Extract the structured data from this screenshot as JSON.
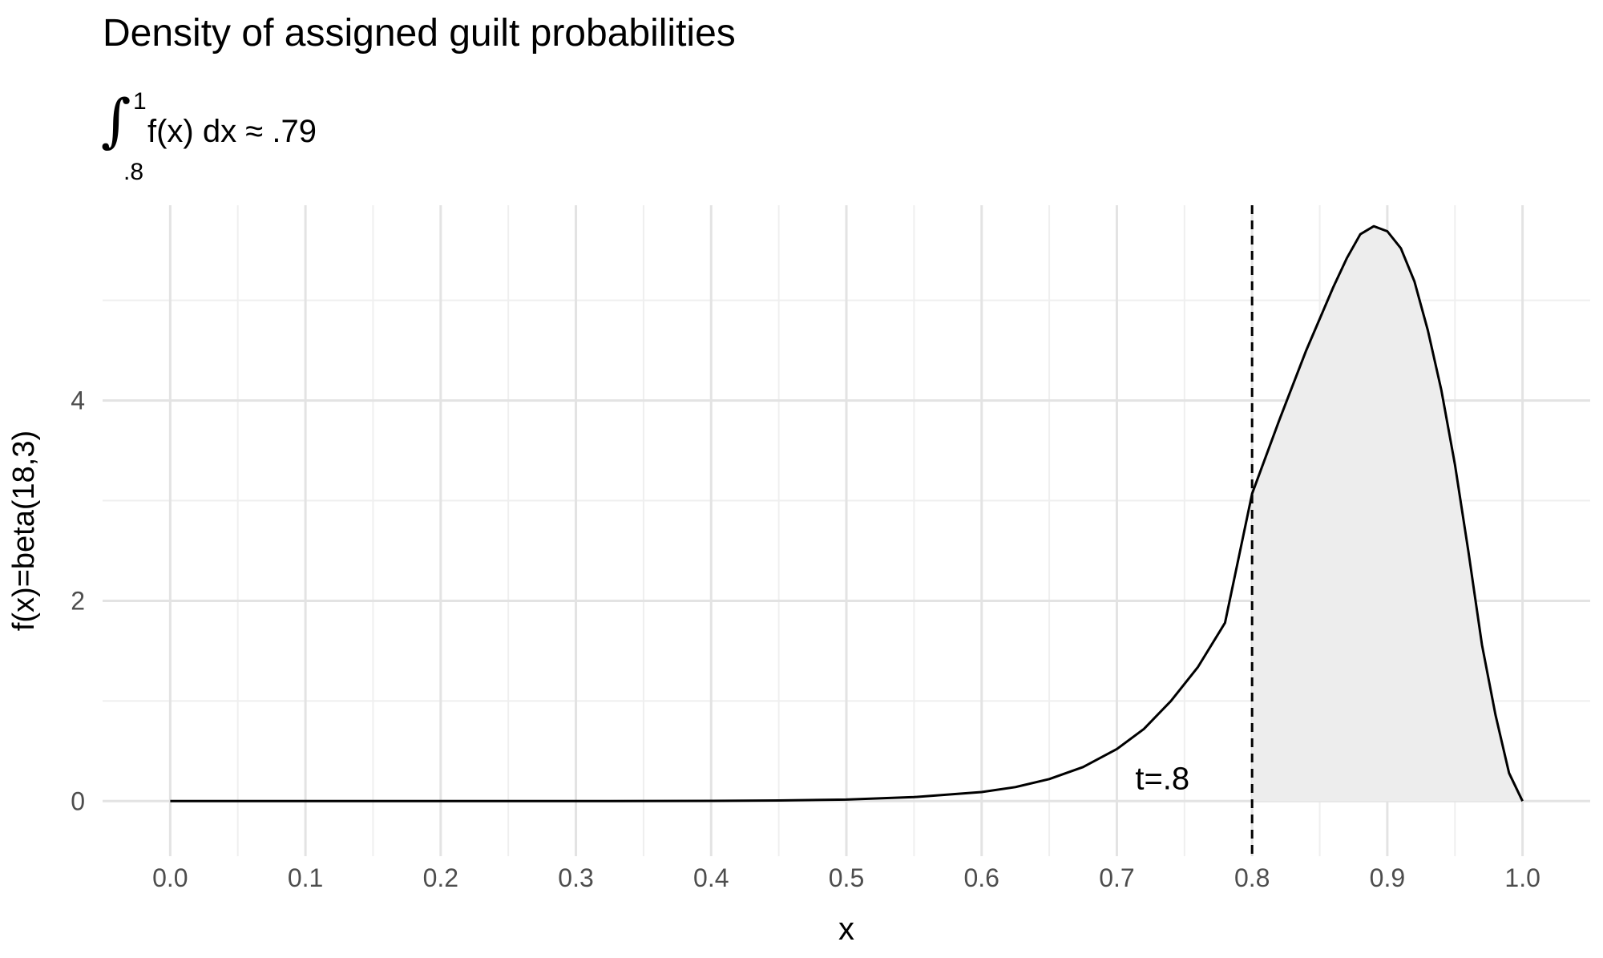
{
  "chart_data": {
    "type": "area",
    "title": "Density of assigned guilt probabilities",
    "subtitle": {
      "integral_upper": "1",
      "integral_lower": ".8",
      "integrand": "f(x) dx",
      "approx_symbol": "≈",
      "value": ".79"
    },
    "xlabel": "x",
    "ylabel": "f(x)=beta(18,3)",
    "xlim": [
      -0.05,
      1.05
    ],
    "ylim": [
      -0.55,
      5.95
    ],
    "x_ticks": [
      0.0,
      0.1,
      0.2,
      0.3,
      0.4,
      0.5,
      0.6,
      0.7,
      0.8,
      0.9,
      1.0
    ],
    "x_tick_labels": [
      "0.0",
      "0.1",
      "0.2",
      "0.3",
      "0.4",
      "0.5",
      "0.6",
      "0.7",
      "0.8",
      "0.9",
      "1.0"
    ],
    "y_ticks": [
      0,
      2,
      4
    ],
    "y_tick_labels": [
      "0",
      "2",
      "4"
    ],
    "x_minor_ticks": [
      0.05,
      0.15,
      0.25,
      0.35,
      0.45,
      0.55,
      0.65,
      0.75,
      0.85,
      0.95
    ],
    "y_minor_ticks": [
      1,
      3,
      5
    ],
    "grid": true,
    "series": [
      {
        "x": [
          0.0,
          0.1,
          0.2,
          0.3,
          0.4,
          0.45,
          0.5,
          0.55,
          0.6,
          0.625,
          0.65,
          0.675,
          0.7,
          0.72,
          0.74,
          0.76,
          0.78,
          0.8,
          0.82,
          0.84,
          0.86,
          0.87,
          0.88,
          0.89,
          0.9,
          0.91,
          0.92,
          0.93,
          0.94,
          0.95,
          0.96,
          0.97,
          0.98,
          0.99,
          1.0
        ],
        "values": [
          0,
          0,
          0,
          0,
          0.002,
          0.006,
          0.015,
          0.04,
          0.09,
          0.14,
          0.22,
          0.34,
          0.52,
          0.72,
          1.0,
          1.34,
          1.78,
          3.07,
          3.8,
          4.5,
          5.13,
          5.42,
          5.66,
          5.74,
          5.69,
          5.52,
          5.19,
          4.7,
          4.1,
          3.36,
          2.49,
          1.56,
          0.86,
          0.28,
          0.0
        ]
      }
    ],
    "shaded_region": {
      "from": 0.8,
      "to": 1.0,
      "fill": "#ededed"
    },
    "threshold": {
      "x": 0.8,
      "label": "t=.8",
      "label_y": 0.2,
      "style": "dashed"
    },
    "colors": {
      "line": "#000000",
      "grid_major": "#e3e3e3",
      "grid_minor": "#efefef",
      "tick_text": "#4d4d4d"
    }
  }
}
